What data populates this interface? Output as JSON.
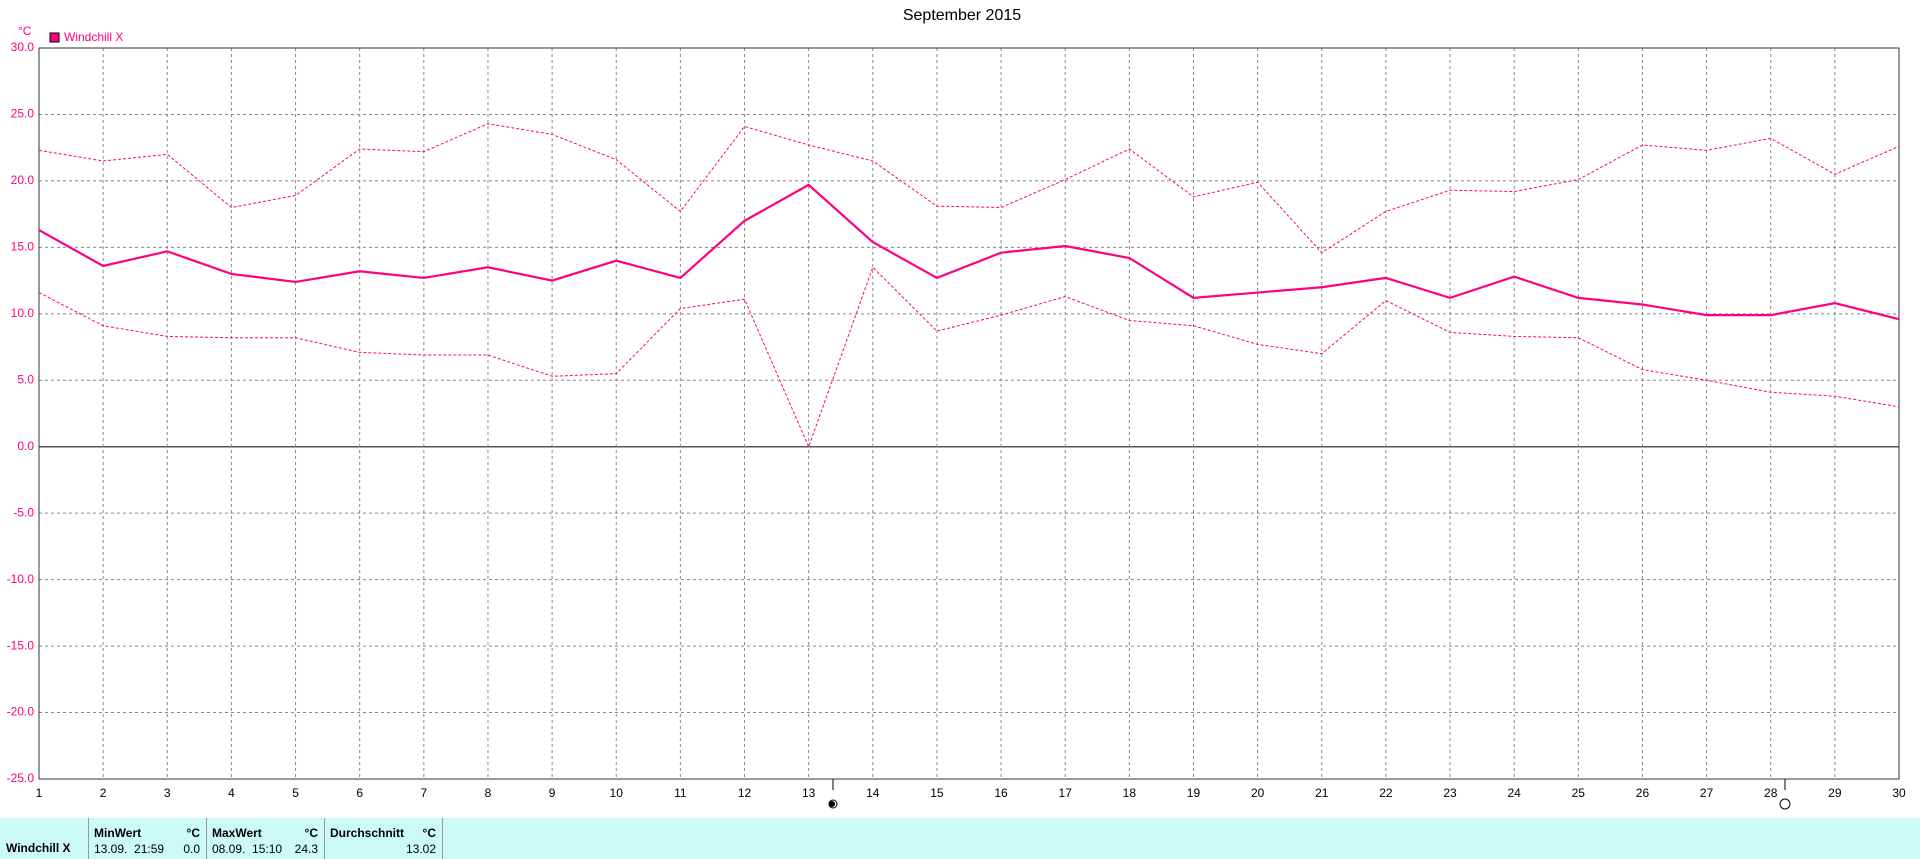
{
  "chart_data": {
    "type": "line",
    "title": "September 2015",
    "y_label": "°C",
    "x": [
      1,
      2,
      3,
      4,
      5,
      6,
      7,
      8,
      9,
      10,
      11,
      12,
      13,
      14,
      15,
      16,
      17,
      18,
      19,
      20,
      21,
      22,
      23,
      24,
      25,
      26,
      27,
      28,
      29,
      30
    ],
    "xlim": [
      1,
      30
    ],
    "ylim": [
      -25,
      30
    ],
    "yticks": [
      {
        "value": -25,
        "label": "-25.0"
      },
      {
        "value": -20,
        "label": "-20.0"
      },
      {
        "value": -15,
        "label": "-15.0"
      },
      {
        "value": -10,
        "label": "-10.0"
      },
      {
        "value": -5,
        "label": "-5.0"
      },
      {
        "value": 0,
        "label": "0.0"
      },
      {
        "value": 5,
        "label": "5.0"
      },
      {
        "value": 10,
        "label": "10.0"
      },
      {
        "value": 15,
        "label": "15.0"
      },
      {
        "value": 20,
        "label": "20.0"
      },
      {
        "value": 25,
        "label": "25.0"
      },
      {
        "value": 30,
        "label": "30.0"
      }
    ],
    "grid": true,
    "legend": "top-left",
    "series": [
      {
        "name": "Windchill X",
        "color": "#ff0080",
        "style": "solid",
        "values": [
          16.3,
          13.6,
          14.7,
          13.0,
          12.4,
          13.2,
          12.7,
          13.5,
          12.5,
          14.0,
          12.7,
          17.0,
          19.7,
          15.4,
          12.7,
          14.6,
          15.1,
          14.2,
          11.2,
          11.6,
          12.0,
          12.7,
          11.2,
          12.8,
          11.2,
          10.7,
          9.9,
          9.9,
          10.8,
          9.6
        ]
      },
      {
        "color": "#ff0080",
        "style": "dotted",
        "values": [
          22.3,
          21.5,
          22.0,
          18.0,
          18.9,
          22.4,
          22.2,
          24.3,
          23.5,
          21.6,
          17.7,
          24.1,
          22.7,
          21.5,
          18.1,
          18.0,
          20.1,
          22.4,
          18.8,
          19.9,
          14.6,
          17.7,
          19.3,
          19.2,
          20.1,
          22.7,
          22.3,
          23.2,
          20.5,
          22.6
        ]
      },
      {
        "color": "#ff0080",
        "style": "dotted",
        "values": [
          11.6,
          9.1,
          8.3,
          8.2,
          8.2,
          7.1,
          6.9,
          6.9,
          5.3,
          5.5,
          10.4,
          11.1,
          0.0,
          13.5,
          8.7,
          9.9,
          11.3,
          9.5,
          9.1,
          7.7,
          7.0,
          11.0,
          8.6,
          8.3,
          8.2,
          5.8,
          5.0,
          4.1,
          3.8,
          3.0
        ]
      }
    ]
  },
  "stats": {
    "label": "Windchill X",
    "columns": [
      {
        "header": "MinWert",
        "unit": "°C",
        "time": "13.09.  21:59",
        "value": "0.0"
      },
      {
        "header": "MaxWert",
        "unit": "°C",
        "time": "08.09.  15:10",
        "value": "24.3"
      },
      {
        "header": "Durchschnitt",
        "unit": "°C",
        "time": "",
        "value": "13.02"
      }
    ]
  }
}
